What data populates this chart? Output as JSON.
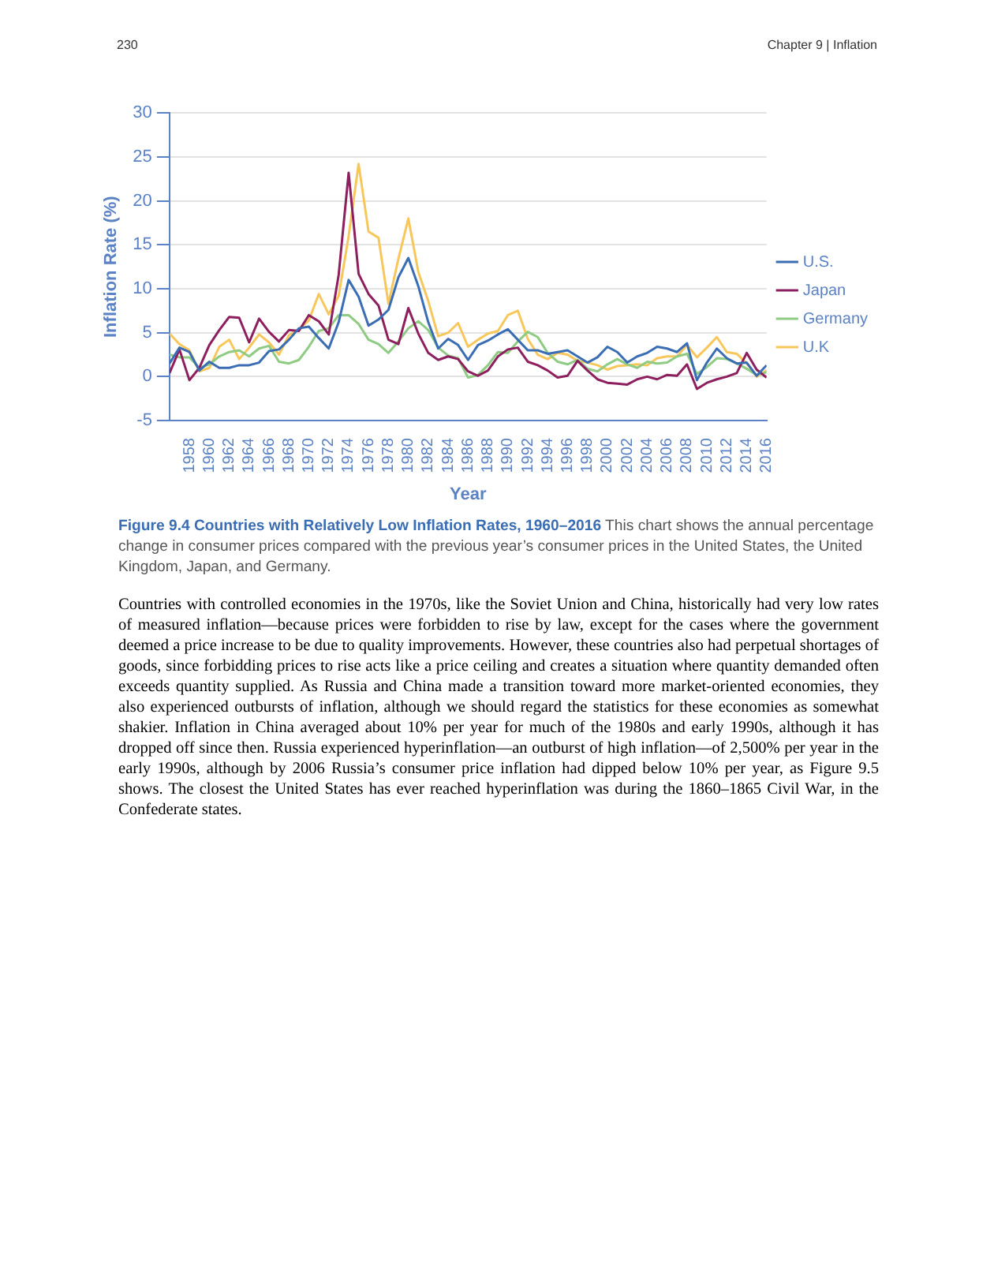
{
  "chart_data": {
    "type": "line",
    "title": "Figure 9.4 Countries with Relatively Low Inflation Rates, 1960–2016",
    "subtitle": "This chart shows the annual percentage change in consumer prices compared with the previous year’s consumer prices in the United States, the United Kingdom, Japan, and Germany.",
    "xlabel": "Year",
    "ylabel": "Inflation Rate (%)",
    "x": [
      1956,
      1957,
      1958,
      1959,
      1960,
      1961,
      1962,
      1963,
      1964,
      1965,
      1966,
      1967,
      1968,
      1969,
      1970,
      1971,
      1972,
      1973,
      1974,
      1975,
      1976,
      1977,
      1978,
      1979,
      1980,
      1981,
      1982,
      1983,
      1984,
      1985,
      1986,
      1987,
      1988,
      1989,
      1990,
      1991,
      1992,
      1993,
      1994,
      1995,
      1996,
      1997,
      1998,
      1999,
      2000,
      2001,
      2002,
      2003,
      2004,
      2005,
      2006,
      2007,
      2008,
      2009,
      2010,
      2011,
      2012,
      2013,
      2014,
      2015,
      2016
    ],
    "series": [
      {
        "name": "U.S.",
        "color": "#3a6db3",
        "values": [
          1.5,
          3.3,
          2.8,
          0.7,
          1.7,
          1.0,
          1.0,
          1.3,
          1.3,
          1.6,
          2.9,
          3.1,
          4.2,
          5.5,
          5.7,
          4.4,
          3.2,
          6.2,
          11.0,
          9.1,
          5.8,
          6.5,
          7.6,
          11.3,
          13.5,
          10.3,
          6.2,
          3.2,
          4.3,
          3.6,
          1.9,
          3.6,
          4.1,
          4.8,
          5.4,
          4.2,
          3.0,
          3.0,
          2.6,
          2.8,
          3.0,
          2.3,
          1.6,
          2.2,
          3.4,
          2.8,
          1.6,
          2.3,
          2.7,
          3.4,
          3.2,
          2.8,
          3.8,
          -0.4,
          1.6,
          3.2,
          2.1,
          1.5,
          1.6,
          0.1,
          1.3
        ]
      },
      {
        "name": "Japan",
        "color": "#8e1f5e",
        "values": [
          0.4,
          3.1,
          -0.4,
          1.0,
          3.6,
          5.3,
          6.8,
          6.7,
          3.9,
          6.6,
          5.1,
          4.0,
          5.3,
          5.2,
          7.0,
          6.3,
          4.8,
          11.6,
          23.2,
          11.7,
          9.4,
          8.1,
          4.2,
          3.7,
          7.8,
          4.9,
          2.7,
          1.9,
          2.3,
          2.0,
          0.6,
          0.1,
          0.7,
          2.3,
          3.1,
          3.3,
          1.7,
          1.3,
          0.7,
          -0.1,
          0.1,
          1.8,
          0.7,
          -0.3,
          -0.7,
          -0.8,
          -0.9,
          -0.3,
          0.0,
          -0.3,
          0.2,
          0.1,
          1.4,
          -1.4,
          -0.7,
          -0.3,
          0.0,
          0.4,
          2.7,
          0.8,
          -0.1
        ]
      },
      {
        "name": "Germany",
        "color": "#8fcb82",
        "values": [
          2.5,
          2.2,
          2.2,
          1.0,
          1.4,
          2.3,
          2.8,
          3.0,
          2.3,
          3.2,
          3.5,
          1.7,
          1.5,
          1.9,
          3.4,
          5.2,
          5.5,
          7.0,
          7.0,
          6.0,
          4.2,
          3.7,
          2.7,
          4.0,
          5.5,
          6.3,
          5.3,
          3.3,
          2.4,
          2.1,
          -0.1,
          0.2,
          1.3,
          2.8,
          2.7,
          4.0,
          5.1,
          4.5,
          2.7,
          1.7,
          1.4,
          1.9,
          0.9,
          0.6,
          1.4,
          2.0,
          1.4,
          1.0,
          1.7,
          1.5,
          1.6,
          2.3,
          2.6,
          0.3,
          1.1,
          2.1,
          2.0,
          1.5,
          0.9,
          0.2,
          0.5
        ]
      },
      {
        "name": "U.K",
        "color": "#f8c75c",
        "values": [
          4.9,
          3.7,
          3.0,
          0.6,
          1.0,
          3.4,
          4.2,
          2.0,
          3.3,
          4.8,
          3.9,
          2.5,
          4.7,
          5.4,
          6.4,
          9.4,
          7.1,
          9.2,
          16.0,
          24.2,
          16.5,
          15.8,
          8.3,
          13.4,
          18.0,
          11.9,
          8.6,
          4.6,
          5.0,
          6.1,
          3.4,
          4.2,
          4.9,
          5.2,
          7.0,
          7.5,
          4.3,
          2.5,
          2.0,
          2.7,
          2.5,
          1.8,
          1.6,
          1.3,
          0.8,
          1.2,
          1.3,
          1.4,
          1.3,
          2.1,
          2.3,
          2.3,
          3.6,
          2.2,
          3.3,
          4.5,
          2.8,
          2.6,
          1.5,
          0.0,
          0.7
        ]
      }
    ],
    "xlim": [
      1956,
      2016
    ],
    "xticks": [
      1958,
      1960,
      1962,
      1964,
      1966,
      1968,
      1970,
      1972,
      1974,
      1976,
      1978,
      1980,
      1982,
      1984,
      1986,
      1988,
      1990,
      1992,
      1994,
      1996,
      1998,
      2000,
      2002,
      2004,
      2006,
      2008,
      2010,
      2012,
      2014,
      2016
    ],
    "ylim": [
      -5,
      30
    ],
    "yticks": [
      -5,
      0,
      5,
      10,
      15,
      20,
      25,
      30
    ],
    "grid": "y",
    "legend": "right",
    "annotations": [
      "230",
      "Chapter 9 | Inflation",
      "Countries with controlled economies in the 1970s, like the Soviet Union and China, historically had very low rates of measured inflation—because prices were forbidden to rise by law, except for the cases where the government deemed a price increase to be due to quality improvements. However, these countries also had perpetual shortages of goods, since forbidding prices to rise acts like a price ceiling and creates a situation where quantity demanded often exceeds quantity supplied. As Russia and China made a transition toward more market-oriented economies, they also experienced outbursts of inflation, although we should regard the statistics for these economies as somewhat shakier. Inflation in China averaged about 10% per year for much of the 1980s and early 1990s, although it has dropped off since then. Russia experienced hyperinflation—an outburst of high inflation—of 2,500% per year in the early 1990s, although by 2006 Russia’s consumer price inflation had dipped below 10% per year, as Figure 9.5 shows. The closest the United States has ever reached hyperinflation was during the 1860–1865 Civil War, in the Confederate states."
    ]
  }
}
